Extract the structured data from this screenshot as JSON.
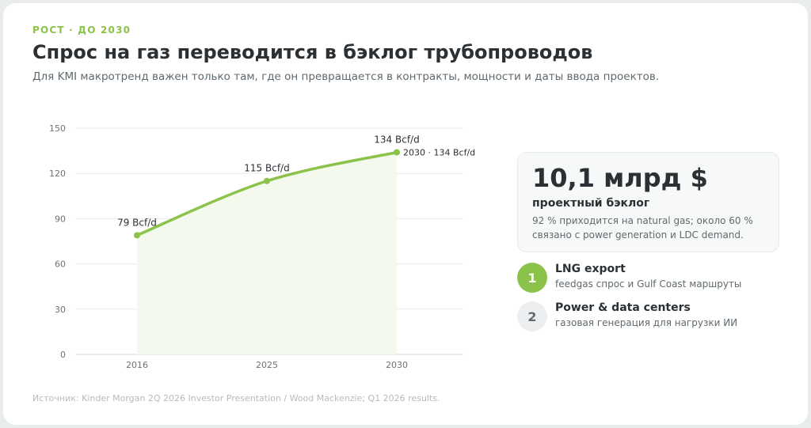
{
  "eyebrow": "РОСТ · ДО 2030",
  "title": "Спрос на газ переводится в бэклог трубопроводов",
  "subtitle": "Для KMI макротренд важен только там, где он превращается в контракты, мощности и даты ввода проектов.",
  "colors": {
    "accent": "#8bc34a",
    "fill": "#f3f9ec",
    "text": "#2b3035",
    "muted": "#5f6a70"
  },
  "chart_data": {
    "type": "line",
    "x": [
      "2016",
      "2025",
      "2030"
    ],
    "series": [
      {
        "values": [
          79,
          115,
          134
        ],
        "point_labels": [
          "79 Bcf/d",
          "115 Bcf/d",
          "134 Bcf/d"
        ]
      }
    ],
    "end_label": "2030 · 134 Bcf/d",
    "y_ticks": [
      "0",
      "30",
      "60",
      "90",
      "120",
      "150"
    ],
    "ylim": [
      0,
      150
    ],
    "grid": true,
    "area_fill": true
  },
  "stat": {
    "value": "10,1 млрд $",
    "label": "проектный бэклог",
    "desc": "92 % приходится на natural gas; около 60 % связано с power generation и LDC demand."
  },
  "items": [
    {
      "num": "1",
      "title": "LNG export",
      "desc": "feedgas спрос и Gulf Coast маршруты",
      "active": true
    },
    {
      "num": "2",
      "title": "Power & data centers",
      "desc": "газовая генерация для нагрузки ИИ",
      "active": false
    }
  ],
  "source": "Источник: Kinder Morgan 2Q 2026 Investor Presentation / Wood Mackenzie; Q1 2026 results."
}
